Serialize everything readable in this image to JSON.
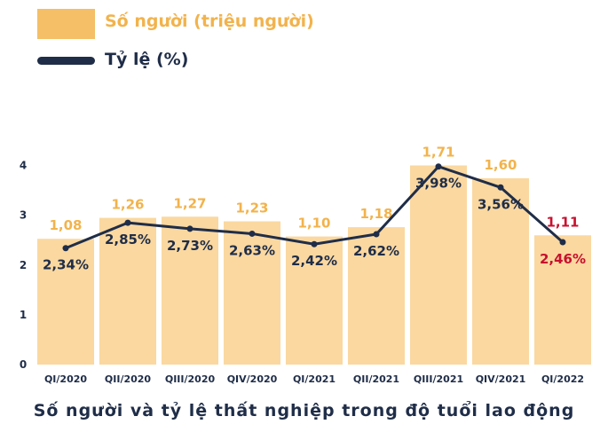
{
  "chart_data": {
    "type": "bar",
    "title": "Số người và tỷ lệ thất nghiệp trong độ tuổi lao động",
    "categories": [
      "QI/2020",
      "QII/2020",
      "QIII/2020",
      "QIV/2020",
      "QI/2021",
      "QII/2021",
      "QIII/2021",
      "QIV/2021",
      "QI/2022"
    ],
    "y_ticks": [
      "0",
      "1",
      "2",
      "3",
      "4"
    ],
    "ylim": [
      0,
      4
    ],
    "legend_position": "top-left",
    "series": [
      {
        "name": "Số người (triệu người)",
        "type": "bar",
        "values": [
          1.08,
          1.26,
          1.27,
          1.23,
          1.1,
          1.18,
          1.71,
          1.6,
          1.11
        ],
        "labels": [
          "1,08",
          "1,26",
          "1,27",
          "1,23",
          "1,10",
          "1,18",
          "1,71",
          "1,60",
          "1,11"
        ],
        "color": "#fad8a0",
        "label_color": "#f2b34c",
        "highlight_label_color": "#c8102e"
      },
      {
        "name": "Tỷ lệ (%)",
        "type": "line",
        "values": [
          2.34,
          2.85,
          2.73,
          2.63,
          2.42,
          2.62,
          3.98,
          3.56,
          2.46
        ],
        "labels": [
          "2,34%",
          "2,85%",
          "2,73%",
          "2,63%",
          "2,42%",
          "2,62%",
          "3,98%",
          "3,56%",
          "2,46%"
        ],
        "color": "#1f2d48",
        "highlight_label_color": "#c8102e"
      }
    ],
    "highlight_index": 8
  }
}
